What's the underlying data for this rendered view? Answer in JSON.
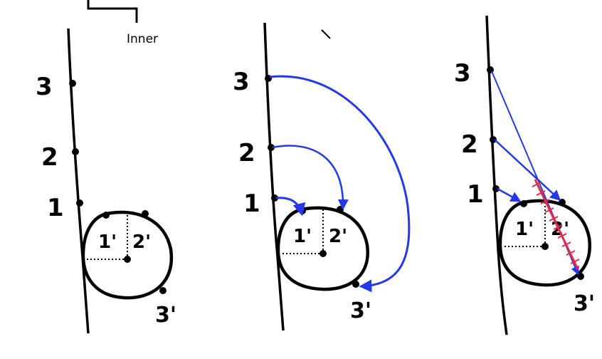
{
  "header": {
    "caption": "Inner"
  },
  "panels": [
    {
      "id": "panel-1",
      "line_labels": [
        "3",
        "2",
        "1"
      ],
      "circle_labels": [
        "1'",
        "2'",
        "3'"
      ],
      "connections": "none"
    },
    {
      "id": "panel-2",
      "line_labels": [
        "3",
        "2",
        "1"
      ],
      "circle_labels": [
        "1'",
        "2'",
        "3'"
      ],
      "connections": "curved-arcs"
    },
    {
      "id": "panel-3",
      "line_labels": [
        "3",
        "2",
        "1"
      ],
      "circle_labels": [
        "1'",
        "2'",
        "3'"
      ],
      "connections": "straight-lines",
      "crossed_out": true
    }
  ],
  "colors": {
    "ink": "#000000",
    "arrow": "#2438e8",
    "strike": "#e02a4a"
  }
}
